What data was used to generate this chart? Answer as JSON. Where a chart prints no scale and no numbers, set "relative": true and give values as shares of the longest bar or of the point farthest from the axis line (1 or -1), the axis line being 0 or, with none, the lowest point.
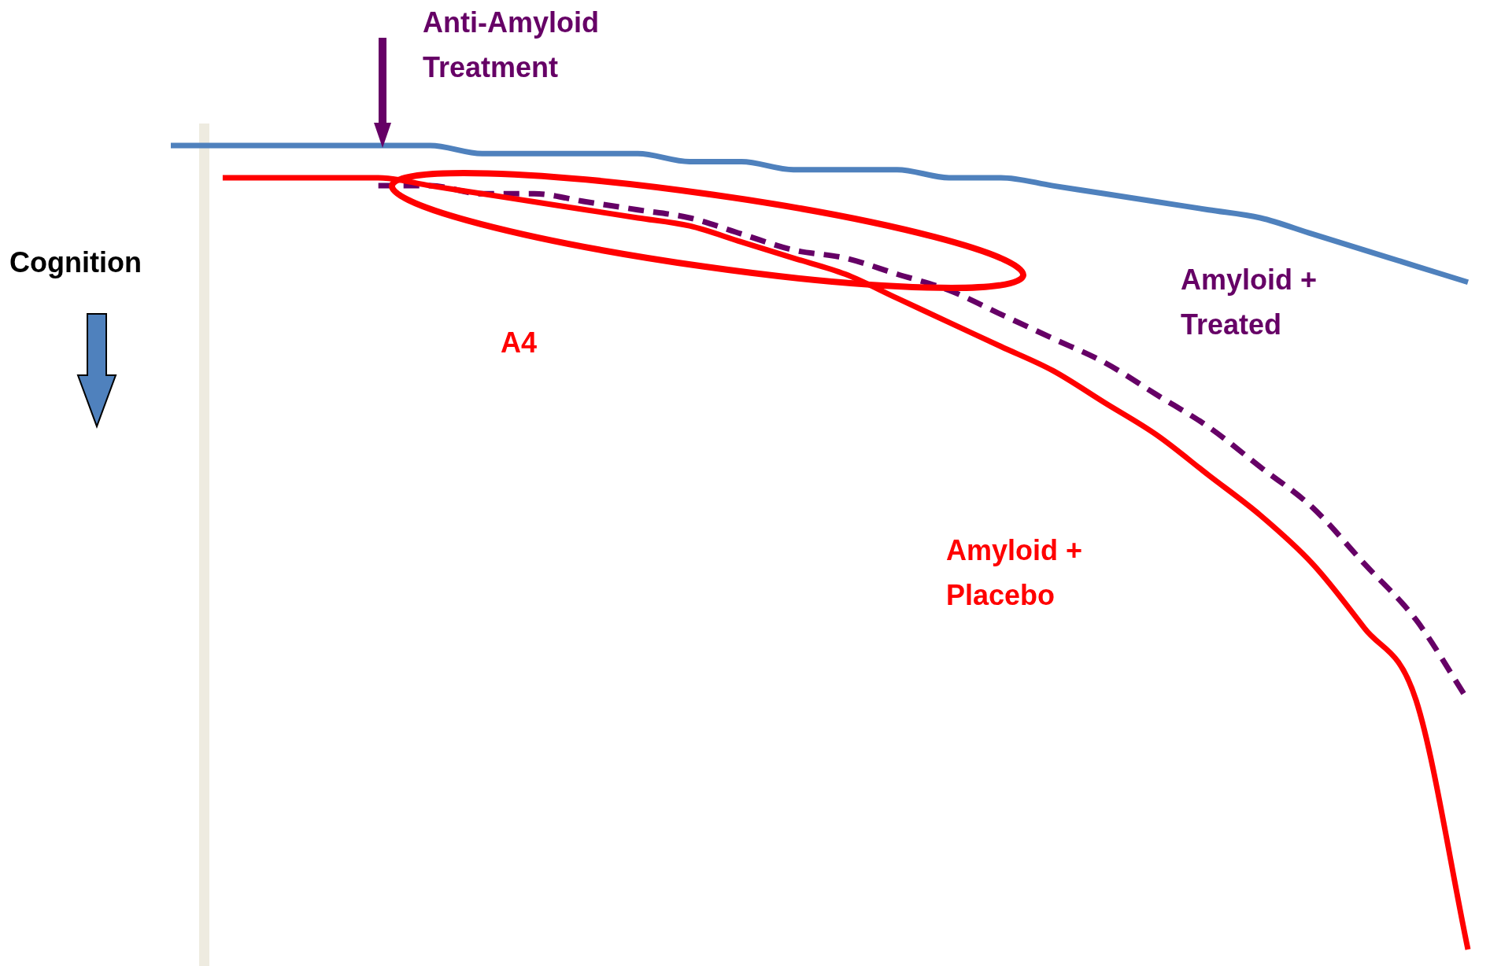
{
  "chart_data": {
    "type": "line",
    "relative": true,
    "ylabel": "Cognition",
    "legend": false,
    "marker": "none",
    "categories": [
      null,
      null,
      null,
      null,
      null,
      null,
      null,
      null,
      null,
      null,
      null,
      null,
      null,
      null,
      null,
      null,
      null,
      null,
      null,
      null,
      null,
      null,
      null,
      null,
      null,
      null
    ],
    "series": [
      {
        "color": "#4f81bd",
        "line_style": "solid",
        "values": [
          1,
          1,
          1,
          1,
          1,
          1,
          0.99,
          0.99,
          0.99,
          0.99,
          0.98,
          0.98,
          0.97,
          0.97,
          0.97,
          0.96,
          0.96,
          0.95,
          0.94,
          0.93,
          0.92,
          0.91,
          0.89,
          0.87,
          0.85,
          0.83
        ]
      },
      {
        "name": "Amyloid + Placebo",
        "color": "#ff0000",
        "line_style": "solid",
        "values": [
          null,
          0.96,
          0.96,
          0.96,
          0.96,
          0.95,
          0.94,
          0.93,
          0.92,
          0.91,
          0.9,
          0.88,
          0.86,
          0.84,
          0.81,
          0.78,
          0.75,
          0.72,
          0.68,
          0.64,
          0.59,
          0.54,
          0.48,
          0.4,
          0.31,
          0
        ]
      },
      {
        "name": "Amyloid + Treated",
        "color": "#660066",
        "line_style": "dashed",
        "values": [
          null,
          null,
          null,
          null,
          0.95,
          0.95,
          0.94,
          0.94,
          0.93,
          0.92,
          0.91,
          0.89,
          0.87,
          0.86,
          0.84,
          0.82,
          0.79,
          0.76,
          0.73,
          0.69,
          0.65,
          0.6,
          0.55,
          0.48,
          0.41,
          0.31
        ]
      }
    ],
    "annotations": [
      "Anti-Amyloid Treatment",
      "A4"
    ]
  }
}
